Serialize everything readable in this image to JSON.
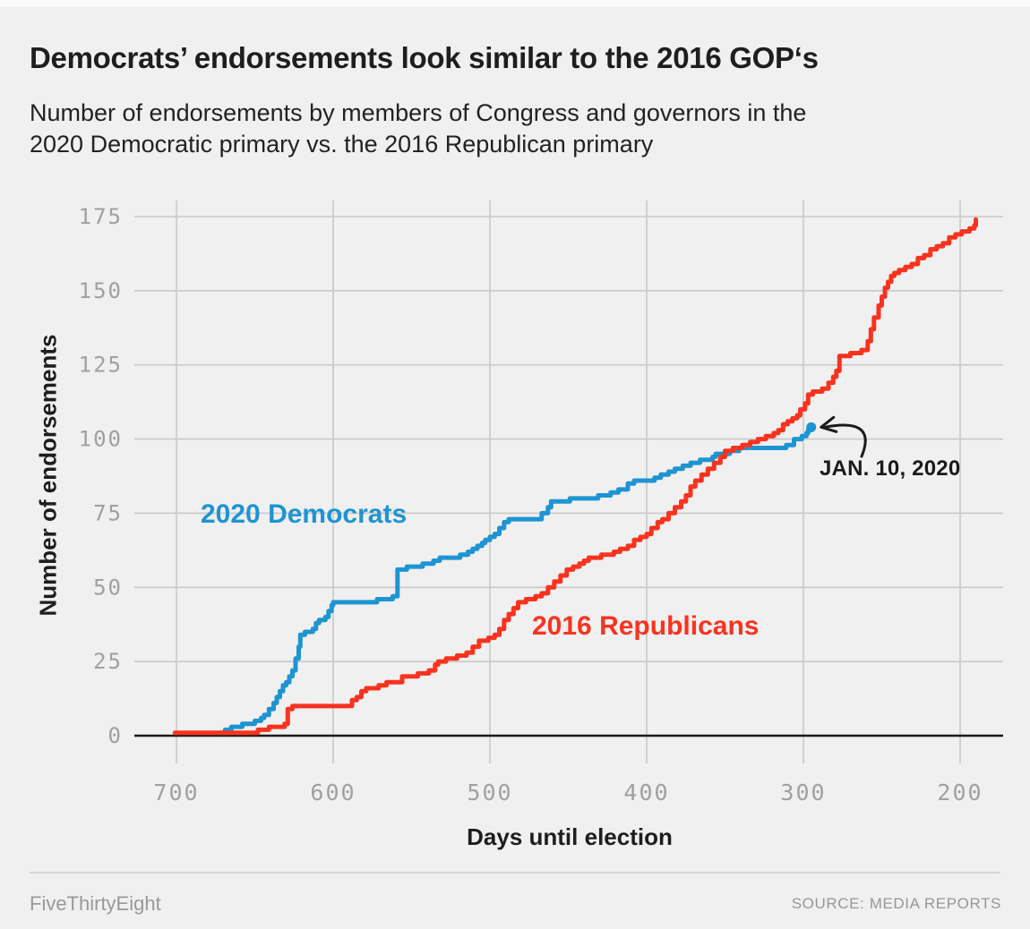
{
  "header": {
    "title": "Democrats’ endorsements look similar to the 2016 GOP‘s",
    "subtitle_lines": [
      "Number of endorsements by members of Congress and governors in the",
      "2020 Democratic primary vs. the 2016 Republican primary"
    ]
  },
  "colors": {
    "background": "#f0f0f0",
    "grid": "#c9c9c9",
    "axis_line": "#1a1a1a",
    "tick_label": "#a0a0a0",
    "democrats_blue": "#1e94d2",
    "republicans_red": "#f9331f",
    "annotation_text": "#1a1a1a",
    "footer_text": "#999999"
  },
  "chart_data": {
    "type": "line",
    "step": true,
    "title": "Democrats’ endorsements look similar to the 2016 GOP‘s",
    "xlabel": "Days until election",
    "ylabel": "Number of endorsements",
    "x_axis_reversed": true,
    "x_ticks": [
      700,
      600,
      500,
      400,
      300,
      200
    ],
    "y_ticks": [
      0,
      25,
      50,
      75,
      100,
      125,
      150,
      175
    ],
    "xlim": [
      715,
      173
    ],
    "ylim": [
      0,
      180
    ],
    "grid": true,
    "legend_position": "inline-labels",
    "series": [
      {
        "name": "2020 Democrats",
        "color": "#1e94d2",
        "end_dot": true,
        "points": [
          [
            672,
            1
          ],
          [
            669,
            2
          ],
          [
            665,
            3
          ],
          [
            658,
            4
          ],
          [
            650,
            5
          ],
          [
            646,
            6
          ],
          [
            644,
            7
          ],
          [
            641,
            9
          ],
          [
            638,
            11
          ],
          [
            636,
            13
          ],
          [
            634,
            15
          ],
          [
            632,
            17
          ],
          [
            630,
            18
          ],
          [
            628,
            20
          ],
          [
            626,
            22
          ],
          [
            624,
            26
          ],
          [
            622,
            30
          ],
          [
            621,
            34
          ],
          [
            618,
            35
          ],
          [
            613,
            36
          ],
          [
            611,
            38
          ],
          [
            609,
            39
          ],
          [
            605,
            40
          ],
          [
            603,
            42
          ],
          [
            601,
            44
          ],
          [
            600,
            45
          ],
          [
            575,
            45
          ],
          [
            572,
            46
          ],
          [
            562,
            47
          ],
          [
            559,
            56
          ],
          [
            553,
            57
          ],
          [
            543,
            58
          ],
          [
            536,
            59
          ],
          [
            532,
            60
          ],
          [
            519,
            61
          ],
          [
            514,
            62
          ],
          [
            511,
            63
          ],
          [
            508,
            64
          ],
          [
            505,
            65
          ],
          [
            503,
            66
          ],
          [
            500,
            67
          ],
          [
            497,
            68
          ],
          [
            494,
            70
          ],
          [
            491,
            72
          ],
          [
            488,
            73
          ],
          [
            470,
            73
          ],
          [
            467,
            75
          ],
          [
            463,
            77
          ],
          [
            461,
            79
          ],
          [
            449,
            80
          ],
          [
            431,
            81
          ],
          [
            423,
            82
          ],
          [
            418,
            83
          ],
          [
            412,
            85
          ],
          [
            408,
            86
          ],
          [
            395,
            87
          ],
          [
            391,
            88
          ],
          [
            386,
            89
          ],
          [
            382,
            90
          ],
          [
            377,
            91
          ],
          [
            372,
            92
          ],
          [
            366,
            93
          ],
          [
            358,
            94
          ],
          [
            356,
            95
          ],
          [
            352,
            95
          ],
          [
            347,
            96
          ],
          [
            341,
            97
          ],
          [
            315,
            97
          ],
          [
            311,
            98
          ],
          [
            306,
            100
          ],
          [
            301,
            101
          ],
          [
            298,
            102
          ],
          [
            297,
            103
          ],
          [
            295,
            104
          ]
        ]
      },
      {
        "name": "2016 Republicans",
        "color": "#f9331f",
        "end_dot": false,
        "points": [
          [
            701,
            1
          ],
          [
            652,
            1
          ],
          [
            648,
            2
          ],
          [
            641,
            3
          ],
          [
            634,
            3
          ],
          [
            631,
            4
          ],
          [
            629,
            9
          ],
          [
            626,
            10
          ],
          [
            592,
            10
          ],
          [
            588,
            12
          ],
          [
            585,
            13
          ],
          [
            582,
            15
          ],
          [
            579,
            16
          ],
          [
            571,
            17
          ],
          [
            566,
            18
          ],
          [
            556,
            20
          ],
          [
            546,
            21
          ],
          [
            539,
            22
          ],
          [
            535,
            24
          ],
          [
            533,
            25
          ],
          [
            528,
            26
          ],
          [
            521,
            27
          ],
          [
            515,
            28
          ],
          [
            511,
            30
          ],
          [
            507,
            32
          ],
          [
            501,
            33
          ],
          [
            497,
            34
          ],
          [
            494,
            36
          ],
          [
            491,
            39
          ],
          [
            488,
            41
          ],
          [
            485,
            43
          ],
          [
            482,
            45
          ],
          [
            477,
            46
          ],
          [
            471,
            47
          ],
          [
            467,
            48
          ],
          [
            463,
            50
          ],
          [
            459,
            52
          ],
          [
            455,
            54
          ],
          [
            451,
            56
          ],
          [
            447,
            57
          ],
          [
            443,
            58
          ],
          [
            440,
            59
          ],
          [
            437,
            60
          ],
          [
            429,
            61
          ],
          [
            421,
            62
          ],
          [
            417,
            63
          ],
          [
            412,
            64
          ],
          [
            408,
            66
          ],
          [
            404,
            67
          ],
          [
            400,
            68
          ],
          [
            397,
            70
          ],
          [
            393,
            72
          ],
          [
            390,
            73
          ],
          [
            386,
            75
          ],
          [
            382,
            77
          ],
          [
            378,
            79
          ],
          [
            375,
            81
          ],
          [
            372,
            84
          ],
          [
            369,
            86
          ],
          [
            365,
            88
          ],
          [
            361,
            90
          ],
          [
            357,
            92
          ],
          [
            353,
            94
          ],
          [
            350,
            96
          ],
          [
            345,
            97
          ],
          [
            339,
            98
          ],
          [
            334,
            99
          ],
          [
            329,
            100
          ],
          [
            324,
            101
          ],
          [
            319,
            102
          ],
          [
            316,
            103
          ],
          [
            313,
            105
          ],
          [
            310,
            106
          ],
          [
            307,
            107
          ],
          [
            304,
            108
          ],
          [
            302,
            110
          ],
          [
            299,
            112
          ],
          [
            297,
            115
          ],
          [
            294,
            116
          ],
          [
            288,
            117
          ],
          [
            284,
            119
          ],
          [
            281,
            121
          ],
          [
            279,
            123
          ],
          [
            277,
            128
          ],
          [
            270,
            129
          ],
          [
            263,
            130
          ],
          [
            259,
            133
          ],
          [
            257,
            137
          ],
          [
            255,
            141
          ],
          [
            252,
            145
          ],
          [
            250,
            148
          ],
          [
            248,
            151
          ],
          [
            246,
            153
          ],
          [
            244,
            155
          ],
          [
            242,
            156
          ],
          [
            239,
            157
          ],
          [
            235,
            158
          ],
          [
            231,
            159
          ],
          [
            227,
            161
          ],
          [
            223,
            162
          ],
          [
            219,
            164
          ],
          [
            215,
            165
          ],
          [
            211,
            166
          ],
          [
            207,
            168
          ],
          [
            203,
            169
          ],
          [
            199,
            170
          ],
          [
            194,
            171
          ],
          [
            191,
            172
          ],
          [
            190,
            174
          ]
        ]
      }
    ],
    "annotation": {
      "text": "JAN. 10, 2020",
      "target_day": 295,
      "target_value": 104
    }
  },
  "footer": {
    "brand": "FiveThirtyEight",
    "source": "SOURCE: MEDIA REPORTS"
  }
}
